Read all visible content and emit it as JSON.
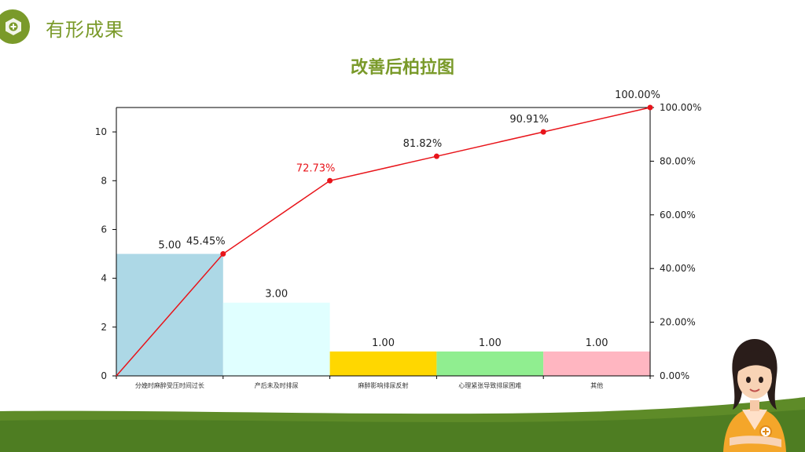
{
  "header": {
    "section_title": "有形成果",
    "icon": "medical-cross-icon"
  },
  "chart_data": {
    "type": "bar",
    "title": "改善后柏拉图",
    "xlabel": "",
    "ylabel": "",
    "categories": [
      "分娩时麻醉受压时间过长",
      "产后未及时排尿",
      "麻醉影响排尿反射",
      "心理紧张导致排尿困难",
      "其他"
    ],
    "values": [
      5,
      3,
      1,
      1,
      1
    ],
    "value_labels": [
      "5.00",
      "3.00",
      "1.00",
      "1.00",
      "1.00"
    ],
    "bar_colors": [
      "#add8e6",
      "#e0ffff",
      "#ffd700",
      "#90ee90",
      "#ffb6c1"
    ],
    "ylim": [
      0,
      11
    ],
    "yticks": [
      0,
      2,
      4,
      6,
      8,
      10
    ],
    "cumulative": {
      "values": [
        0,
        45.45,
        72.73,
        81.82,
        90.91,
        100.0
      ],
      "labels": [
        "",
        "45.45%",
        "72.73%",
        "81.82%",
        "90.91%",
        "100.00%"
      ],
      "color": "#e8141a",
      "ylim": [
        0,
        100
      ],
      "yticks": [
        "0.00%",
        "20.00%",
        "40.00%",
        "60.00%",
        "80.00%",
        "100.00%"
      ]
    },
    "grid": false
  },
  "colors": {
    "accent": "#7a9a2a",
    "line": "#e8141a",
    "wave_dark": "#4e7d22",
    "wave_light": "#8fb334"
  }
}
